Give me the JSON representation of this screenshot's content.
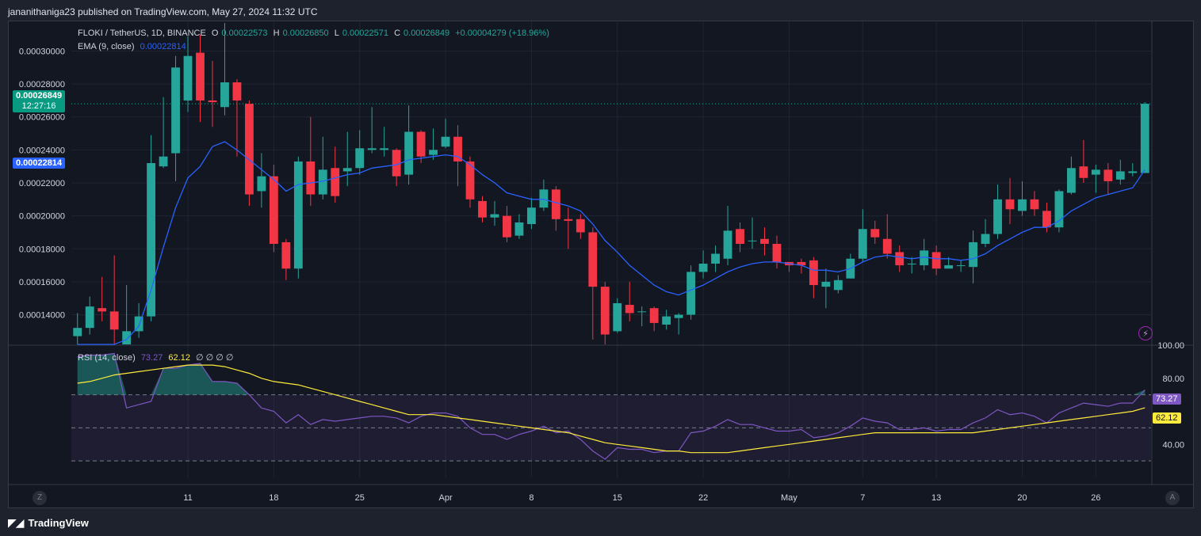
{
  "header": {
    "publisher": "jananithaniga23 published on TradingView.com, May 27, 2024 11:32 UTC"
  },
  "legend": {
    "symbol": "FLOKI / TetherUS, 1D, BINANCE",
    "open_k": "O",
    "open": "0.00022573",
    "high_k": "H",
    "high": "0.00026850",
    "low_k": "L",
    "low": "0.00022571",
    "close_k": "C",
    "close": "0.00026849",
    "change": "+0.00004279 (+18.96%)",
    "ema_label": "EMA (9, close)",
    "ema_value": "0.00022814"
  },
  "rsi_legend": {
    "label": "RSI (14, close)",
    "rsi": "73.27",
    "ma": "62.12",
    "extras": "∅ ∅ ∅ ∅"
  },
  "price_tags": {
    "last": "0.00026849",
    "countdown": "12:27:16",
    "ema": "0.00022814",
    "rsi": "73.27",
    "rsi_ma": "62.12"
  },
  "colors": {
    "up": "#26a69a",
    "down": "#f23645",
    "ema": "#2962ff",
    "rsi": "#7e57c2",
    "rsi_ma": "#ffeb3b",
    "bg": "#131722"
  },
  "corner": {
    "left": "Z",
    "right": "A"
  },
  "footer": {
    "brand": "TradingView",
    "logo": "tv-logo-icon"
  },
  "chart_data": [
    {
      "type": "candlestick",
      "title": "FLOKI / TetherUS, 1D, BINANCE",
      "ylim": [
        0.000122,
        0.000318
      ],
      "yticks": [
        "0.00014000",
        "0.00016000",
        "0.00018000",
        "0.00020000",
        "0.00022000",
        "0.00024000",
        "0.00026000",
        "0.00028000",
        "0.00030000"
      ],
      "ytick_values": [
        0.00014,
        0.00016,
        0.00018,
        0.0002,
        0.00022,
        0.00024,
        0.00026,
        0.00028,
        0.0003
      ],
      "xticks": [
        "11",
        "18",
        "25",
        "Apr",
        "8",
        "15",
        "22",
        "May",
        "7",
        "13",
        "20",
        "26"
      ],
      "xtick_index": [
        9,
        16,
        23,
        30,
        37,
        44,
        51,
        58,
        64,
        70,
        77,
        83
      ],
      "candles": [
        [
          0.000127,
          0.000132,
          0.000118,
          0.000141
        ],
        [
          0.000132,
          0.000145,
          0.000128,
          0.000151
        ],
        [
          0.000144,
          0.000142,
          0.000136,
          0.000163
        ],
        [
          0.000142,
          0.000131,
          0.000119,
          0.000176
        ],
        [
          0.000119,
          0.00013,
          0.000118,
          0.000158
        ],
        [
          0.00013,
          0.000139,
          0.000126,
          0.000147
        ],
        [
          0.000139,
          0.000232,
          0.000136,
          0.000249
        ],
        [
          0.00023,
          0.000236,
          0.000229,
          0.000272
        ],
        [
          0.000238,
          0.00029,
          0.000221,
          0.000297
        ],
        [
          0.00027,
          0.000297,
          0.000263,
          0.000309
        ],
        [
          0.000299,
          0.00027,
          0.000257,
          0.00031
        ],
        [
          0.00027,
          0.000269,
          0.000254,
          0.000294
        ],
        [
          0.000266,
          0.000281,
          0.000261,
          0.000317
        ],
        [
          0.000281,
          0.00027,
          0.000236,
          0.000283
        ],
        [
          0.000268,
          0.000213,
          0.000206,
          0.00027
        ],
        [
          0.000215,
          0.000224,
          0.000205,
          0.000238
        ],
        [
          0.000224,
          0.000183,
          0.000178,
          0.000231
        ],
        [
          0.000184,
          0.000168,
          0.000161,
          0.000186
        ],
        [
          0.000168,
          0.000233,
          0.000162,
          0.000236
        ],
        [
          0.000233,
          0.000213,
          0.000206,
          0.00026
        ],
        [
          0.000213,
          0.000228,
          0.00021,
          0.000248
        ],
        [
          0.000229,
          0.000212,
          0.000208,
          0.000242
        ],
        [
          0.000227,
          0.000229,
          0.000218,
          0.000251
        ],
        [
          0.000229,
          0.000241,
          0.000225,
          0.000252
        ],
        [
          0.00024,
          0.000241,
          0.000238,
          0.000266
        ],
        [
          0.00024,
          0.000241,
          0.000236,
          0.000254
        ],
        [
          0.00024,
          0.000224,
          0.000218,
          0.000241
        ],
        [
          0.000225,
          0.000251,
          0.000219,
          0.000267
        ],
        [
          0.000251,
          0.000236,
          0.000232,
          0.000252
        ],
        [
          0.000237,
          0.00024,
          0.000234,
          0.000253
        ],
        [
          0.000242,
          0.000248,
          0.000241,
          0.000259
        ],
        [
          0.000248,
          0.000233,
          0.000218,
          0.000255
        ],
        [
          0.000233,
          0.00021,
          0.000205,
          0.000236
        ],
        [
          0.000209,
          0.000199,
          0.000196,
          0.000212
        ],
        [
          0.000199,
          0.000201,
          0.000194,
          0.000209
        ],
        [
          0.0002,
          0.000187,
          0.000184,
          0.000206
        ],
        [
          0.000188,
          0.000196,
          0.000186,
          0.000201
        ],
        [
          0.000195,
          0.000205,
          0.000192,
          0.000211
        ],
        [
          0.000205,
          0.000216,
          0.000203,
          0.000222
        ],
        [
          0.000216,
          0.000198,
          0.000191,
          0.000218
        ],
        [
          0.000198,
          0.000197,
          0.00018,
          0.000205
        ],
        [
          0.000198,
          0.00019,
          0.000186,
          0.000201
        ],
        [
          0.00019,
          0.000157,
          0.000125,
          0.000193
        ],
        [
          0.000157,
          0.000128,
          0.000121,
          0.00016
        ],
        [
          0.00013,
          0.000147,
          0.000129,
          0.00015
        ],
        [
          0.000146,
          0.000141,
          0.000136,
          0.00016
        ],
        [
          0.000142,
          0.000142,
          0.000133,
          0.000145
        ],
        [
          0.000144,
          0.000135,
          0.00013,
          0.000145
        ],
        [
          0.000134,
          0.000139,
          0.000131,
          0.000143
        ],
        [
          0.000138,
          0.00014,
          0.000128,
          0.000141
        ],
        [
          0.00014,
          0.000166,
          0.000137,
          0.00017
        ],
        [
          0.000166,
          0.000171,
          0.000162,
          0.000179
        ],
        [
          0.000171,
          0.000177,
          0.000166,
          0.000182
        ],
        [
          0.000174,
          0.000191,
          0.00017,
          0.000206
        ],
        [
          0.000192,
          0.000183,
          0.000178,
          0.000196
        ],
        [
          0.000185,
          0.000185,
          0.00018,
          0.000199
        ],
        [
          0.000186,
          0.000183,
          0.000176,
          0.000193
        ],
        [
          0.000183,
          0.000172,
          0.000168,
          0.000188
        ],
        [
          0.000172,
          0.00017,
          0.000166,
          0.000172
        ],
        [
          0.000172,
          0.00017,
          0.000165,
          0.000174
        ],
        [
          0.000173,
          0.000158,
          0.00015,
          0.000175
        ],
        [
          0.000157,
          0.00016,
          0.000144,
          0.000168
        ],
        [
          0.000155,
          0.000161,
          0.000153,
          0.000164
        ],
        [
          0.000162,
          0.000174,
          0.000162,
          0.000177
        ],
        [
          0.000174,
          0.000192,
          0.000172,
          0.000204
        ],
        [
          0.000192,
          0.000187,
          0.000183,
          0.000197
        ],
        [
          0.000186,
          0.000177,
          0.000174,
          0.000201
        ],
        [
          0.000178,
          0.00017,
          0.000166,
          0.000182
        ],
        [
          0.000171,
          0.000171,
          0.000165,
          0.000175
        ],
        [
          0.00017,
          0.000179,
          0.000167,
          0.000186
        ],
        [
          0.000178,
          0.000168,
          0.000164,
          0.000182
        ],
        [
          0.000168,
          0.00017,
          0.000168,
          0.000175
        ],
        [
          0.00017,
          0.00017,
          0.000166,
          0.000173
        ],
        [
          0.000169,
          0.000184,
          0.000159,
          0.000191
        ],
        [
          0.000183,
          0.000189,
          0.000181,
          0.000198
        ],
        [
          0.000189,
          0.00021,
          0.000186,
          0.000219
        ],
        [
          0.00021,
          0.000204,
          0.000195,
          0.000223
        ],
        [
          0.000203,
          0.00021,
          0.0002,
          0.000221
        ],
        [
          0.00021,
          0.000204,
          0.0002,
          0.000215
        ],
        [
          0.000203,
          0.000193,
          0.00019,
          0.000208
        ],
        [
          0.000193,
          0.000215,
          0.00019,
          0.000216
        ],
        [
          0.000214,
          0.000229,
          0.000213,
          0.000236
        ],
        [
          0.00023,
          0.000223,
          0.00022,
          0.000246
        ],
        [
          0.000225,
          0.000228,
          0.000214,
          0.000231
        ],
        [
          0.000228,
          0.000221,
          0.000213,
          0.000232
        ],
        [
          0.000222,
          0.000227,
          0.000219,
          0.000234
        ],
        [
          0.000226,
          0.000227,
          0.000224,
          0.000232
        ],
        [
          0.000226,
          0.000268,
          0.000226,
          0.000269
        ]
      ],
      "ema": [
        0.0001,
        0.000102,
        0.000107,
        0.000116,
        0.000125,
        0.000133,
        0.000155,
        0.000181,
        0.000205,
        0.000223,
        0.00023,
        0.000242,
        0.000245,
        0.00024,
        0.000234,
        0.000228,
        0.000222,
        0.000215,
        0.000219,
        0.00022,
        0.000221,
        0.000223,
        0.000225,
        0.000226,
        0.000229,
        0.00023,
        0.000231,
        0.000234,
        0.000235,
        0.000236,
        0.000237,
        0.000236,
        0.000231,
        0.000225,
        0.00022,
        0.000214,
        0.000212,
        0.00021,
        0.00021,
        0.000208,
        0.000206,
        0.000203,
        0.000195,
        0.000185,
        0.000178,
        0.00017,
        0.000164,
        0.000158,
        0.000154,
        0.000152,
        0.000155,
        0.000158,
        0.000162,
        0.000166,
        0.000169,
        0.000171,
        0.000172,
        0.000172,
        0.000171,
        0.00017,
        0.000167,
        0.000167,
        0.000166,
        0.000168,
        0.000172,
        0.000175,
        0.000176,
        0.000175,
        0.000174,
        0.000175,
        0.000174,
        0.000174,
        0.000173,
        0.000174,
        0.000177,
        0.000182,
        0.000186,
        0.00019,
        0.000193,
        0.000193,
        0.000197,
        0.000203,
        0.000207,
        0.000211,
        0.000213,
        0.000215,
        0.000217,
        0.000228
      ]
    },
    {
      "type": "line",
      "title": "RSI (14, close)",
      "ylim": [
        20,
        100
      ],
      "yticks": [
        "40.00",
        "80.00",
        "100.00"
      ],
      "ytick_values": [
        40,
        80,
        100
      ],
      "band": [
        30,
        70
      ],
      "midline": 50,
      "series": [
        {
          "name": "RSI",
          "values": [
            93,
            94,
            94,
            95,
            62,
            64,
            66,
            86,
            86,
            88,
            89,
            78,
            78,
            77,
            70,
            62,
            60,
            53,
            58,
            52,
            55,
            54,
            55,
            56,
            57,
            57,
            56,
            53,
            57,
            59,
            59,
            57,
            50,
            46,
            46,
            43,
            46,
            48,
            51,
            47,
            48,
            43,
            36,
            31,
            38,
            37,
            37,
            35,
            36,
            36,
            47,
            48,
            51,
            55,
            52,
            52,
            50,
            48,
            48,
            49,
            44,
            45,
            47,
            51,
            56,
            54,
            53,
            49,
            49,
            50,
            48,
            49,
            49,
            53,
            56,
            61,
            58,
            59,
            57,
            53,
            59,
            62,
            65,
            64,
            63,
            65,
            65,
            73
          ]
        },
        {
          "name": "MA",
          "values": [
            77,
            78,
            80,
            82,
            83,
            84,
            85,
            86,
            87,
            88,
            88,
            88,
            87,
            85,
            83,
            80,
            78,
            77,
            76,
            74,
            72,
            70,
            68,
            66,
            64,
            62,
            60,
            58,
            58,
            58,
            57,
            56,
            55,
            54,
            53,
            52,
            51,
            50,
            49,
            48,
            47,
            45,
            43,
            41,
            40,
            39,
            38,
            37,
            36,
            36,
            35,
            35,
            35,
            35,
            36,
            37,
            38,
            39,
            40,
            41,
            42,
            43,
            44,
            45,
            46,
            47,
            47,
            47,
            47,
            47,
            47,
            47,
            47,
            47,
            48,
            49,
            50,
            51,
            52,
            53,
            54,
            55,
            56,
            57,
            58,
            59,
            60,
            62.12
          ]
        }
      ]
    }
  ]
}
